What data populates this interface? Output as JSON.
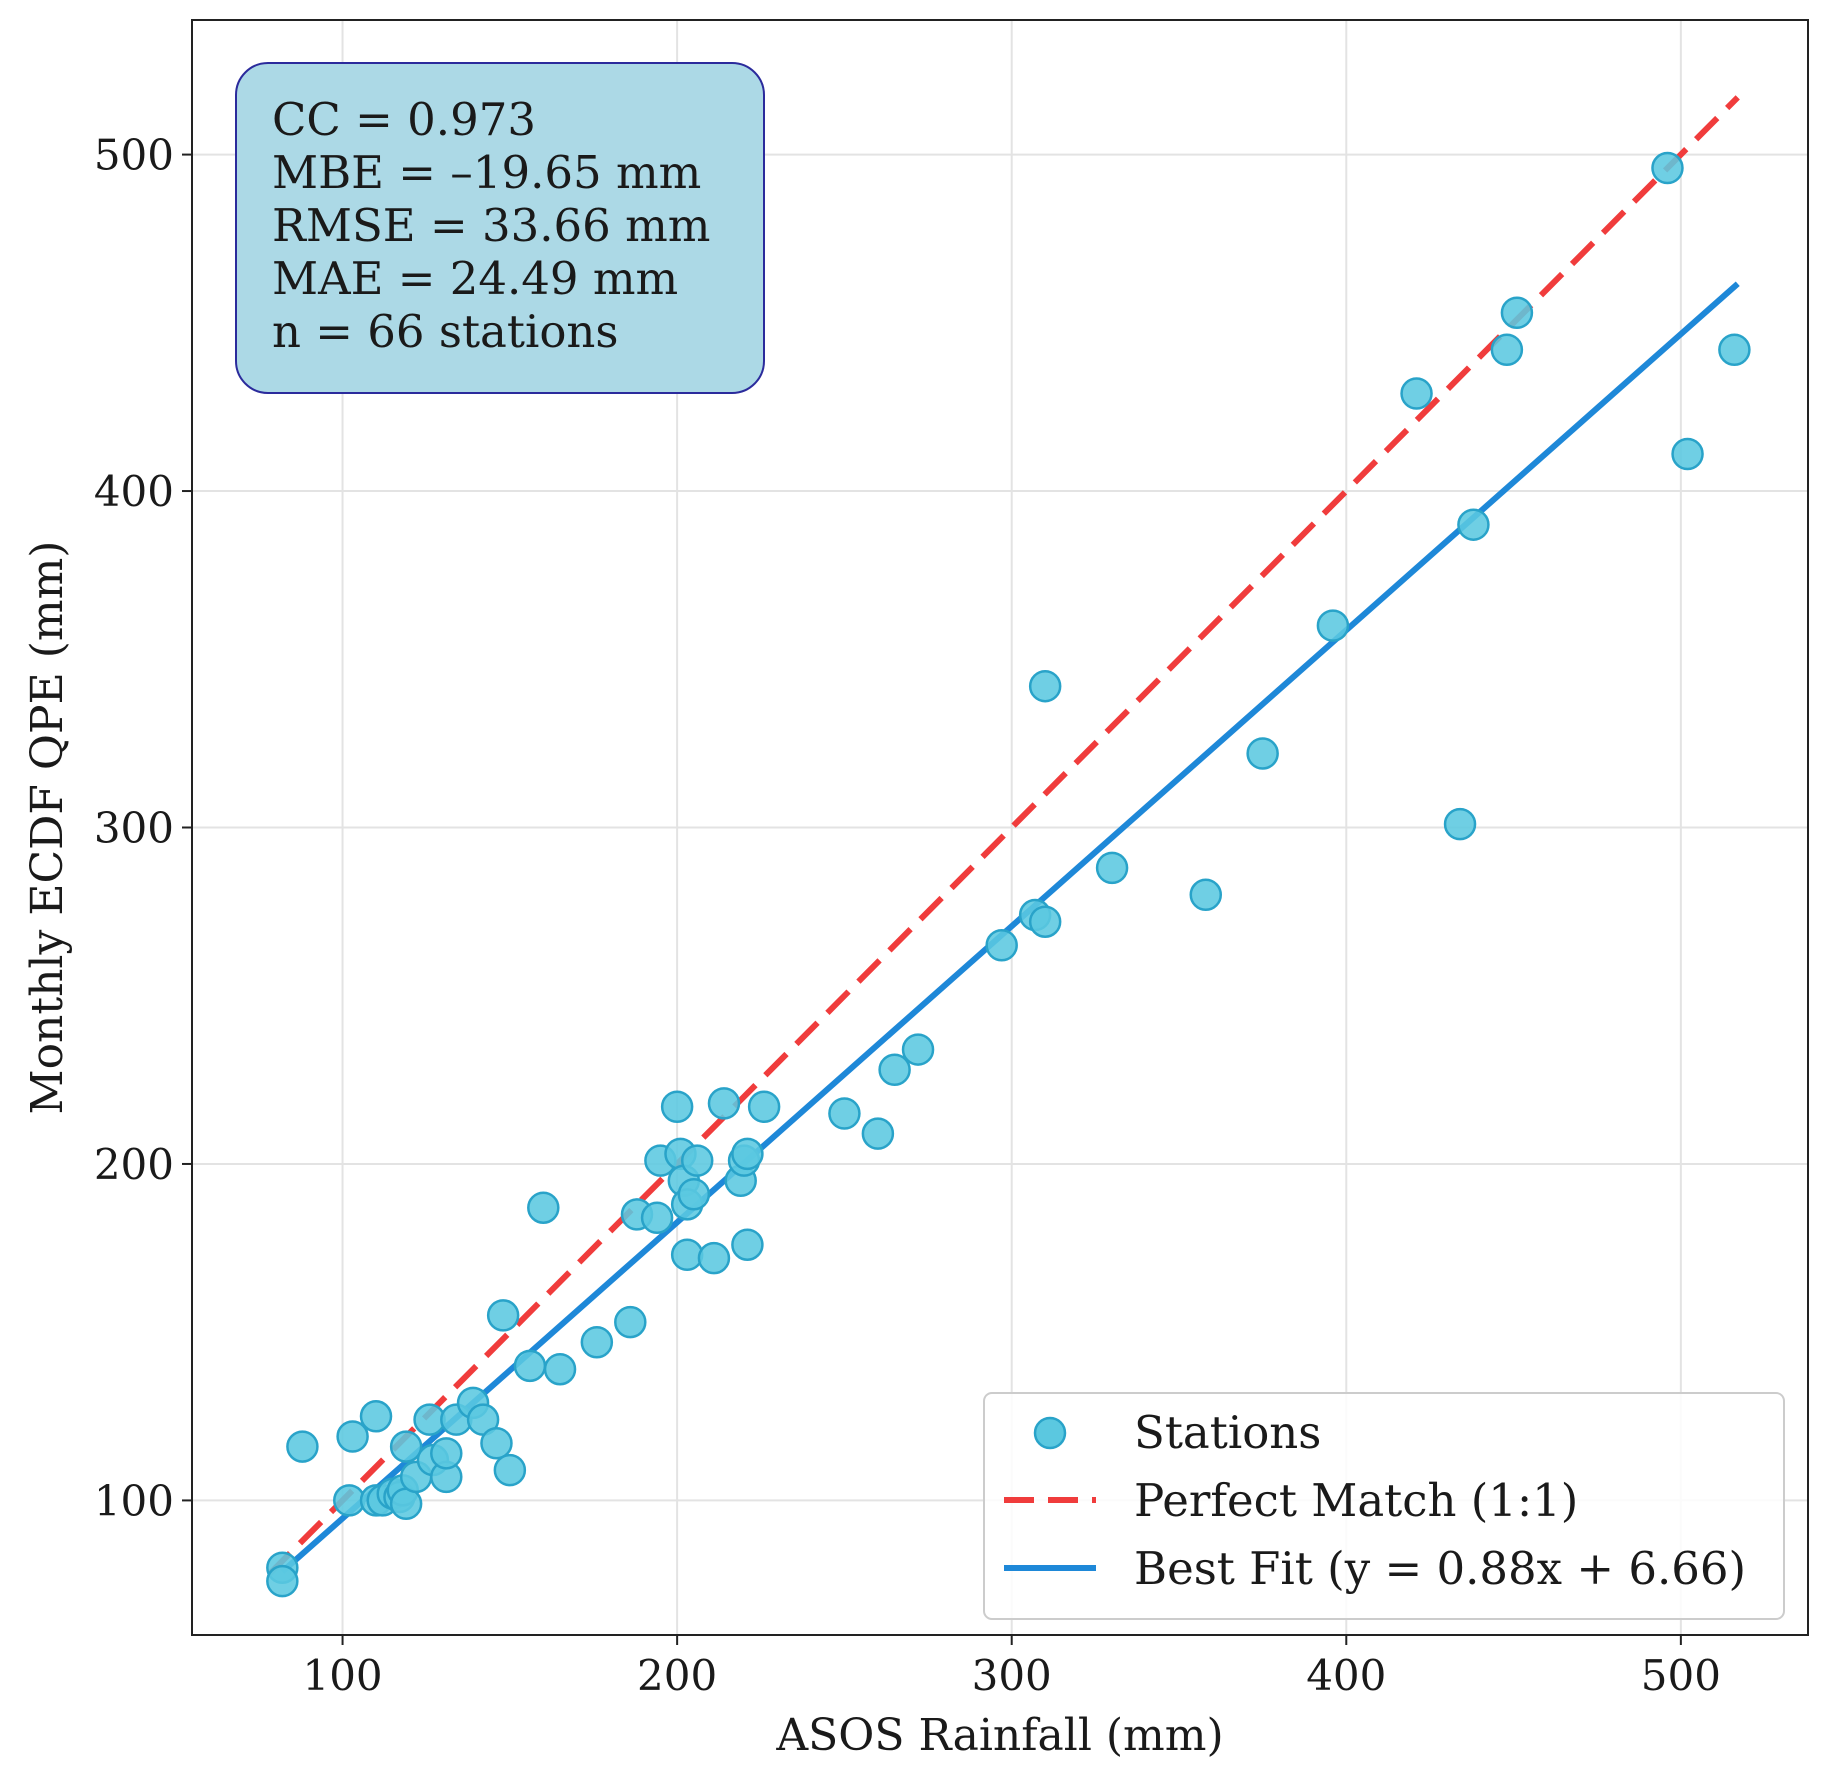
{
  "chart_data": {
    "type": "scatter",
    "xlabel": "ASOS Rainfall (mm)",
    "ylabel": "Monthly ECDF QPE (mm)",
    "xlim": [
      55,
      538
    ],
    "ylim": [
      60,
      540
    ],
    "xticks": [
      100,
      200,
      300,
      400,
      500
    ],
    "yticks": [
      100,
      200,
      300,
      400,
      500
    ],
    "grid": true,
    "stats": [
      "CC = 0.973",
      "MBE = –19.65 mm",
      "RMSE = 33.66 mm",
      "MAE = 24.49 mm",
      "n = 66 stations"
    ],
    "legend": {
      "placement": "lower-right",
      "stations_label": "Stations",
      "perfect_label": "Perfect Match (1:1)",
      "fit_label": "Best Fit (y = 0.88x + 6.66)"
    },
    "perfect_match": {
      "x": [
        78,
        517
      ],
      "slope": 1,
      "intercept": 0
    },
    "best_fit": {
      "x": [
        82,
        517
      ],
      "slope": 0.88,
      "intercept": 6.66
    },
    "colors": {
      "marker_fill": "#5bc8e0",
      "marker_edge": "#29a3c9",
      "perfect_line": "#f03c3c",
      "fit_line": "#1e88d8",
      "stats_box_fill": "#acd9e6",
      "stats_box_edge": "#2b2b9c",
      "grid": "#e3e3e3"
    },
    "series": [
      {
        "name": "Stations",
        "points": [
          [
            82,
            80
          ],
          [
            82,
            76
          ],
          [
            88,
            116
          ],
          [
            102,
            100
          ],
          [
            103,
            119
          ],
          [
            110,
            125
          ],
          [
            110,
            100
          ],
          [
            112,
            100
          ],
          [
            115,
            102
          ],
          [
            117,
            101
          ],
          [
            118,
            103
          ],
          [
            119,
            99
          ],
          [
            119,
            116
          ],
          [
            122,
            107
          ],
          [
            126,
            124
          ],
          [
            127,
            112
          ],
          [
            131,
            107
          ],
          [
            131,
            114
          ],
          [
            134,
            124
          ],
          [
            139,
            129
          ],
          [
            142,
            124
          ],
          [
            146,
            117
          ],
          [
            148,
            155
          ],
          [
            150,
            109
          ],
          [
            156,
            140
          ],
          [
            160,
            187
          ],
          [
            165,
            139
          ],
          [
            176,
            147
          ],
          [
            186,
            153
          ],
          [
            188,
            185
          ],
          [
            194,
            184
          ],
          [
            195,
            201
          ],
          [
            200,
            217
          ],
          [
            201,
            203
          ],
          [
            202,
            195
          ],
          [
            203,
            173
          ],
          [
            203,
            188
          ],
          [
            205,
            191
          ],
          [
            206,
            201
          ],
          [
            211,
            172
          ],
          [
            214,
            218
          ],
          [
            219,
            195
          ],
          [
            220,
            201
          ],
          [
            221,
            176
          ],
          [
            221,
            203
          ],
          [
            226,
            217
          ],
          [
            250,
            215
          ],
          [
            260,
            209
          ],
          [
            265,
            228
          ],
          [
            272,
            234
          ],
          [
            297,
            265
          ],
          [
            307,
            274
          ],
          [
            310,
            272
          ],
          [
            310,
            342
          ],
          [
            330,
            288
          ],
          [
            358,
            280
          ],
          [
            375,
            322
          ],
          [
            396,
            360
          ],
          [
            421,
            429
          ],
          [
            434,
            301
          ],
          [
            438,
            390
          ],
          [
            448,
            442
          ],
          [
            451,
            453
          ],
          [
            496,
            496
          ],
          [
            502,
            411
          ],
          [
            516,
            442
          ]
        ]
      }
    ]
  }
}
